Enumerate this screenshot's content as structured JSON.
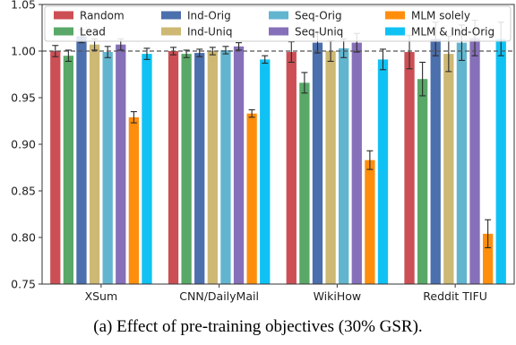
{
  "chart_data": {
    "type": "bar",
    "categories": [
      "XSum",
      "CNN/DailyMail",
      "WikiHow",
      "Reddit TIFU"
    ],
    "series": [
      {
        "name": "Random",
        "color": "#cc4f55",
        "values": [
          1.0,
          1.0,
          0.999,
          0.999
        ],
        "errors": [
          0.006,
          0.004,
          0.011,
          0.018
        ]
      },
      {
        "name": "Lead",
        "color": "#59a867",
        "values": [
          0.995,
          0.997,
          0.966,
          0.97
        ],
        "errors": [
          0.006,
          0.004,
          0.011,
          0.018
        ]
      },
      {
        "name": "Ind-Orig",
        "color": "#4c6fad",
        "values": [
          1.016,
          0.998,
          1.009,
          1.013
        ],
        "errors": [
          0.007,
          0.004,
          0.011,
          0.018
        ]
      },
      {
        "name": "Ind-Uniq",
        "color": "#cdb874",
        "values": [
          1.007,
          1.0,
          1.0,
          0.997
        ],
        "errors": [
          0.006,
          0.004,
          0.011,
          0.019
        ]
      },
      {
        "name": "Seq-Orig",
        "color": "#62b5cf",
        "values": [
          0.999,
          1.001,
          1.003,
          1.009
        ],
        "errors": [
          0.006,
          0.004,
          0.01,
          0.019
        ]
      },
      {
        "name": "Seq-Uniq",
        "color": "#8670b9",
        "values": [
          1.007,
          1.005,
          1.009,
          1.014
        ],
        "errors": [
          0.006,
          0.004,
          0.01,
          0.019
        ]
      },
      {
        "name": "MLM solely",
        "color": "#ff8e0d",
        "values": [
          0.929,
          0.933,
          0.883,
          0.804
        ],
        "errors": [
          0.006,
          0.004,
          0.01,
          0.015
        ]
      },
      {
        "name": "MLM & Ind-Orig",
        "color": "#10c2f4",
        "values": [
          0.997,
          0.991,
          0.991,
          1.013
        ],
        "errors": [
          0.006,
          0.004,
          0.011,
          0.018
        ]
      }
    ],
    "ylim": [
      0.75,
      1.05
    ],
    "yticks": [
      "0.75",
      "0.80",
      "0.85",
      "0.90",
      "0.95",
      "1.00",
      "1.05"
    ],
    "reference_line": 1.0,
    "legend_placement": "top",
    "legend_columns": 4,
    "grid": false,
    "xlabel": "",
    "ylabel": "",
    "title": ""
  },
  "caption": "(a) Effect of pre-training objectives (30% GSR)."
}
